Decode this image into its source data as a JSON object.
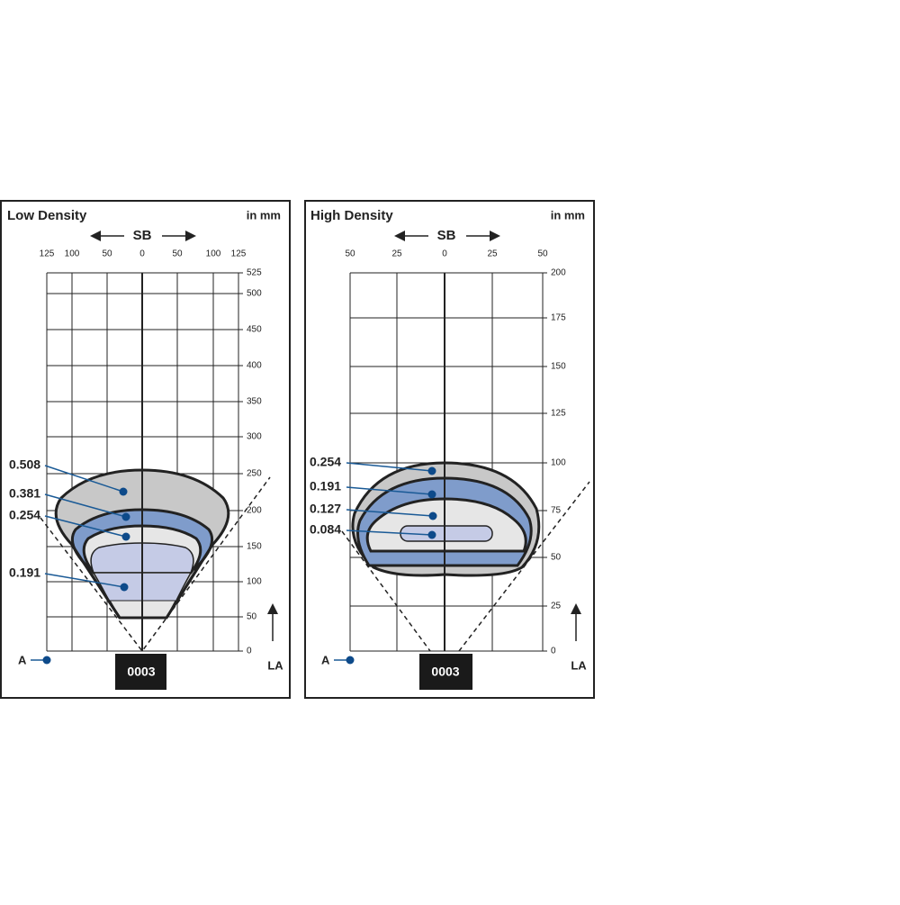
{
  "panels": [
    {
      "title": "Low Density",
      "unit": "in mm",
      "axis_label": "SB",
      "x_labels": [
        "125",
        "100",
        "50",
        "0",
        "50",
        "100",
        "125"
      ],
      "y_labels": [
        "525",
        "500",
        "450",
        "400",
        "350",
        "300",
        "250",
        "200",
        "150",
        "100",
        "50",
        "0"
      ],
      "zones": [
        "0.508",
        "0.381",
        "0.254",
        "0.191"
      ],
      "aperture": "A",
      "depth_label": "LA",
      "badge": "0003"
    },
    {
      "title": "High Density",
      "unit": "in mm",
      "axis_label": "SB",
      "x_labels": [
        "50",
        "25",
        "0",
        "25",
        "50"
      ],
      "y_labels": [
        "200",
        "175",
        "150",
        "125",
        "100",
        "75",
        "50",
        "25",
        "0"
      ],
      "zones": [
        "0.254",
        "0.191",
        "0.127",
        "0.084"
      ],
      "aperture": "A",
      "depth_label": "LA",
      "badge": "0003"
    }
  ]
}
